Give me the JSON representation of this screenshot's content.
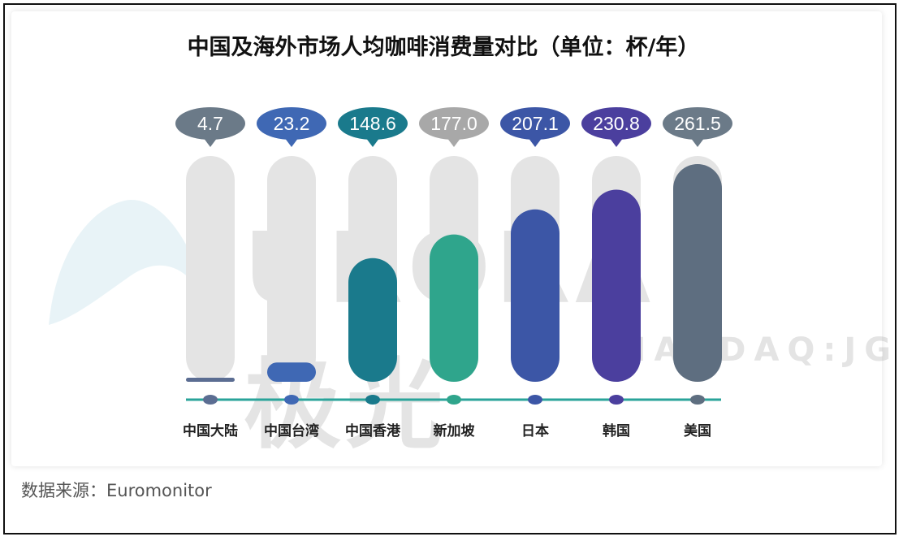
{
  "header": {
    "title": "中国及海外市场人均咖啡消费量对比（单位：杯/年）"
  },
  "footer": {
    "source": "数据来源：Euromonitor"
  },
  "watermark": {
    "brand": "URORA极光",
    "sub": "NASDAQ:JG"
  },
  "chart_data": {
    "type": "bar",
    "title": "中国及海外市场人均咖啡消费量对比（单位：杯/年）",
    "unit": "杯/年",
    "categories": [
      "中国大陆",
      "中国台湾",
      "中国香港",
      "新加坡",
      "日本",
      "韩国",
      "美国"
    ],
    "values": [
      4.7,
      23.2,
      148.6,
      177.0,
      207.1,
      230.8,
      261.5
    ],
    "value_labels": [
      "4.7",
      "23.2",
      "148.6",
      "177.0",
      "207.1",
      "230.8",
      "261.5"
    ],
    "ylim": [
      0,
      261.5
    ],
    "bar_colors": [
      "#5b6d92",
      "#3f68b4",
      "#1a7a8c",
      "#2fa58c",
      "#3c56a6",
      "#4b3f9e",
      "#5e6e80"
    ],
    "bubble_colors": [
      "#6b7a88",
      "#3f68b4",
      "#1a7a8c",
      "#a8a8a8",
      "#3c56a6",
      "#4b3f9e",
      "#6b7a88"
    ],
    "track_color": "#e4e4e4",
    "axis_color": "#2aa39a",
    "grid": false,
    "legend": "none"
  }
}
